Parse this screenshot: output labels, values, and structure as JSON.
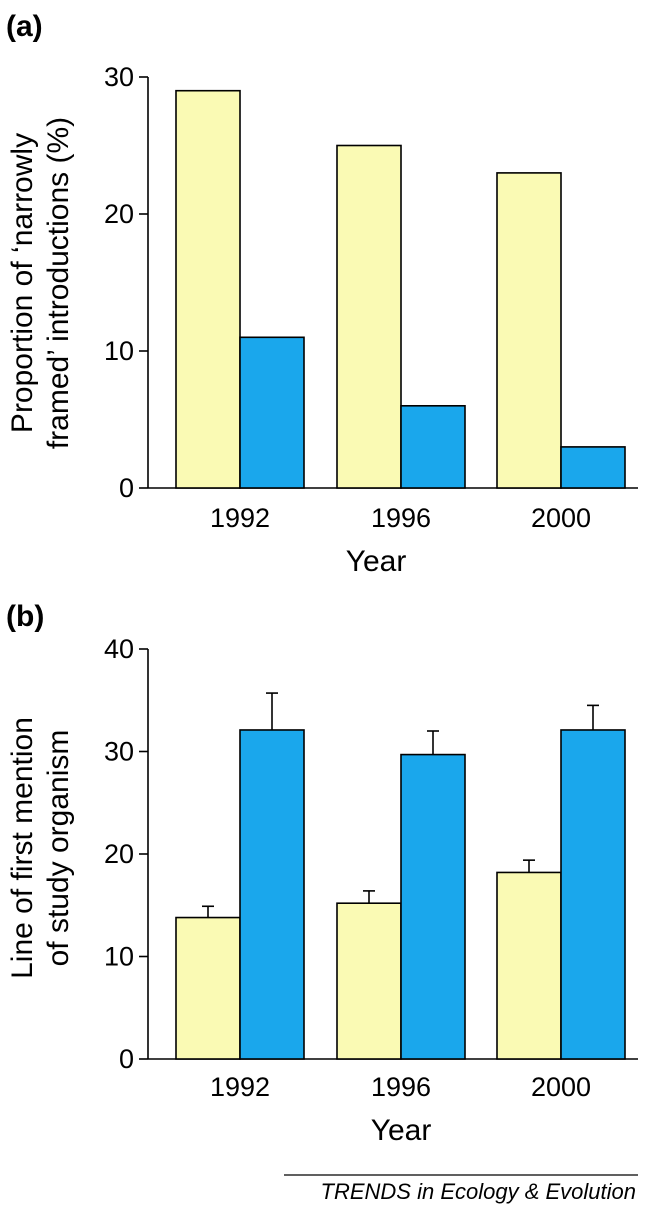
{
  "colors": {
    "yellow_series": "#fafab4",
    "blue_series": "#1aa7ec",
    "outline": "#000000"
  },
  "footer": {
    "source": "TRENDS in Ecology & Evolution"
  },
  "chart_data": [
    {
      "type": "bar",
      "panel_label": "(a)",
      "categories": [
        "1992",
        "1996",
        "2000"
      ],
      "series": [
        {
          "color": "#fafab4",
          "values": [
            29,
            25,
            23
          ]
        },
        {
          "color": "#1aa7ec",
          "values": [
            11,
            6,
            3
          ]
        }
      ],
      "xlabel": "Year",
      "ylabel": [
        "Proportion of ‘narrowly",
        "framed’ introductions (%)"
      ],
      "ylim": [
        0,
        30
      ],
      "yticks": [
        "0",
        "10",
        "20",
        "30"
      ],
      "grid": false
    },
    {
      "type": "bar",
      "panel_label": "(b)",
      "categories": [
        "1992",
        "1996",
        "2000"
      ],
      "series": [
        {
          "color": "#fafab4",
          "values": [
            13.8,
            15.2,
            18.2
          ],
          "error": [
            1.1,
            1.2,
            1.2
          ]
        },
        {
          "color": "#1aa7ec",
          "values": [
            32.1,
            29.7,
            32.1
          ],
          "error": [
            3.6,
            2.3,
            2.4
          ]
        }
      ],
      "xlabel": "Year",
      "ylabel": [
        "Line of first mention",
        "of study organism"
      ],
      "ylim": [
        0,
        40
      ],
      "yticks": [
        "0",
        "10",
        "20",
        "30",
        "40"
      ],
      "grid": false
    }
  ]
}
